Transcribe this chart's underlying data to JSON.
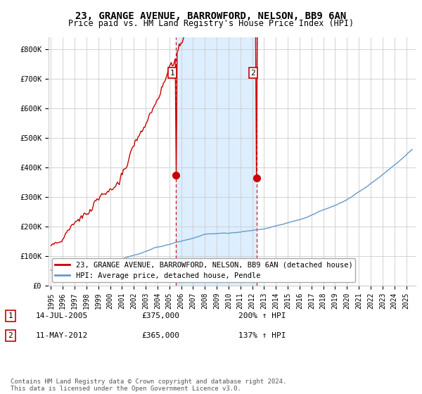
{
  "title": "23, GRANGE AVENUE, BARROWFORD, NELSON, BB9 6AN",
  "subtitle": "Price paid vs. HM Land Registry's House Price Index (HPI)",
  "ylabel_ticks": [
    "£0",
    "£100K",
    "£200K",
    "£300K",
    "£400K",
    "£500K",
    "£600K",
    "£700K",
    "£800K"
  ],
  "ytick_values": [
    0,
    100000,
    200000,
    300000,
    400000,
    500000,
    600000,
    700000,
    800000
  ],
  "ylim": [
    0,
    840000
  ],
  "xlim_start": 1994.8,
  "xlim_end": 2025.8,
  "sale1_x": 2005.54,
  "sale1_y": 375000,
  "sale1_label": "1",
  "sale1_date": "14-JUL-2005",
  "sale1_price": "£375,000",
  "sale1_hpi": "200% ↑ HPI",
  "sale2_x": 2012.37,
  "sale2_y": 365000,
  "sale2_label": "2",
  "sale2_date": "11-MAY-2012",
  "sale2_price": "£365,000",
  "sale2_hpi": "137% ↑ HPI",
  "legend_line1": "23, GRANGE AVENUE, BARROWFORD, NELSON, BB9 6AN (detached house)",
  "legend_line2": "HPI: Average price, detached house, Pendle",
  "footer": "Contains HM Land Registry data © Crown copyright and database right 2024.\nThis data is licensed under the Open Government Licence v3.0.",
  "line_color_red": "#cc0000",
  "line_color_blue": "#6699cc",
  "shading_color": "#ddeeff",
  "sale_marker_color": "#cc0000",
  "background_color": "#ffffff",
  "grid_color": "#cccccc",
  "title_fontsize": 10,
  "subtitle_fontsize": 8.5,
  "tick_fontsize": 7.5,
  "legend_fontsize": 7.5,
  "footer_fontsize": 6.5
}
